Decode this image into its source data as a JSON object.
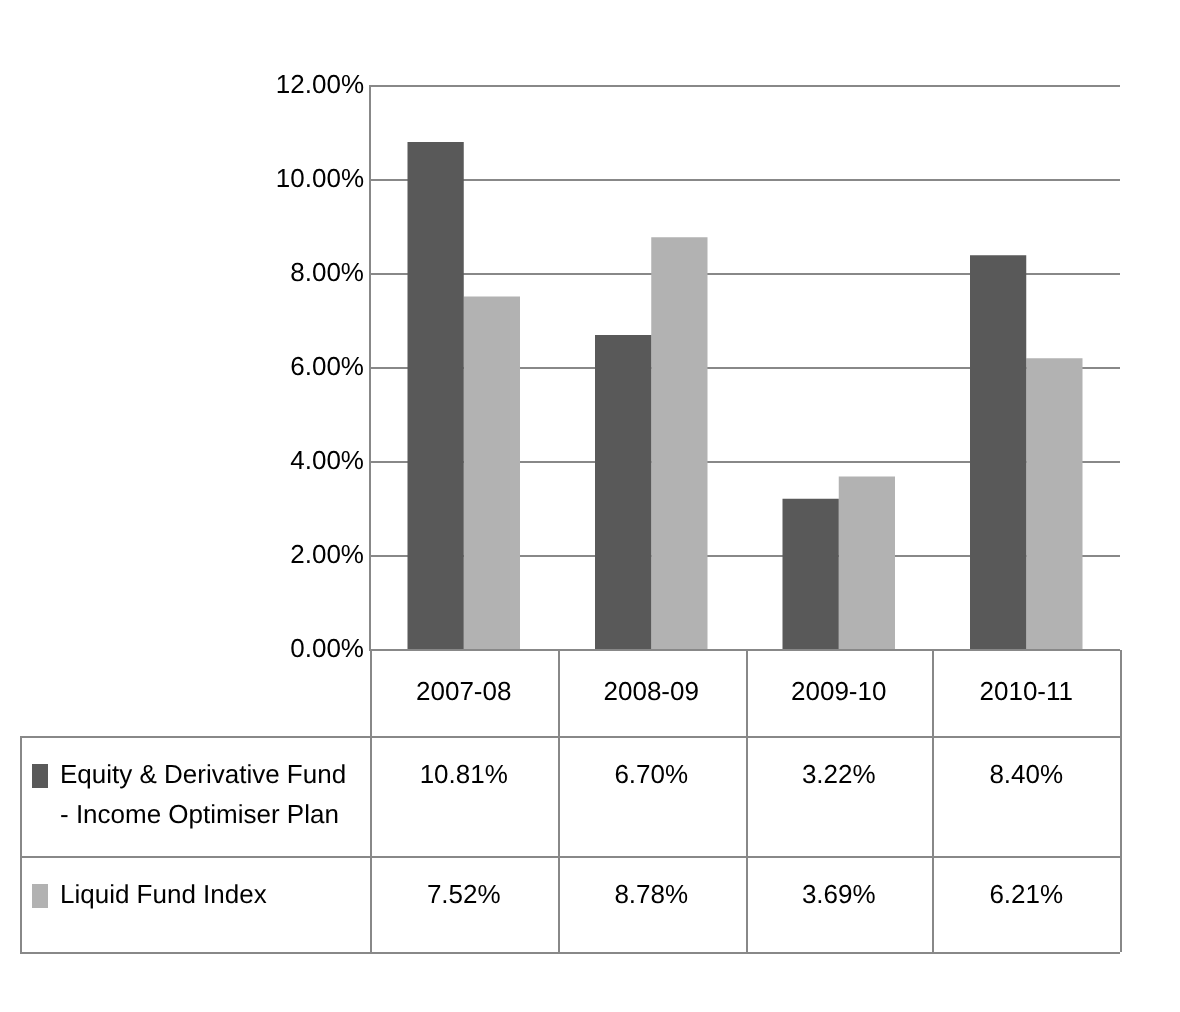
{
  "chart_data": {
    "type": "bar",
    "categories": [
      "2007-08",
      "2008-09",
      "2009-10",
      "2010-11"
    ],
    "series": [
      {
        "name": "Equity & Derivative Fund - Income Optimiser Plan",
        "color": "#595959",
        "values": [
          10.81,
          6.7,
          3.22,
          8.4
        ],
        "value_labels": [
          "10.81%",
          "6.70%",
          "3.22%",
          "8.40%"
        ]
      },
      {
        "name": "Liquid Fund Index",
        "color": "#b2b2b2",
        "values": [
          7.52,
          8.78,
          3.69,
          6.21
        ],
        "value_labels": [
          "7.52%",
          "8.78%",
          "3.69%",
          "6.21%"
        ]
      }
    ],
    "ylim": [
      0,
      12
    ],
    "yticks": [
      {
        "value": 0,
        "label": "0.00%"
      },
      {
        "value": 2,
        "label": "2.00%"
      },
      {
        "value": 4,
        "label": "4.00%"
      },
      {
        "value": 6,
        "label": "6.00%"
      },
      {
        "value": 8,
        "label": "8.00%"
      },
      {
        "value": 10,
        "label": "10.00%"
      },
      {
        "value": 12,
        "label": "12.00%"
      }
    ],
    "grid": "y",
    "legend": "bottom left"
  }
}
